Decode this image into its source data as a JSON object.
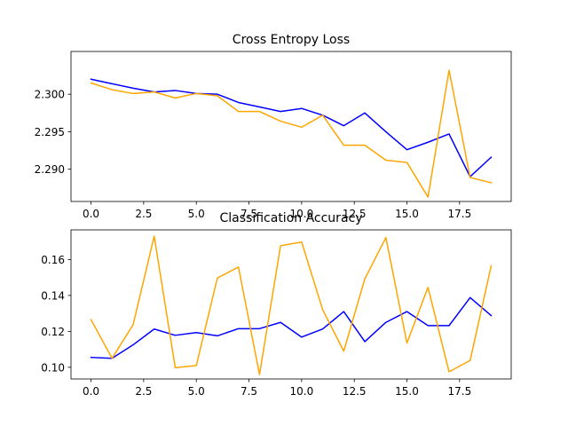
{
  "chart_data": [
    {
      "type": "line",
      "title": "Cross Entropy Loss",
      "x": [
        0,
        1,
        2,
        3,
        4,
        5,
        6,
        7,
        8,
        9,
        10,
        11,
        12,
        13,
        14,
        15,
        16,
        17,
        18,
        19
      ],
      "xlim": [
        -0.95,
        19.95
      ],
      "ylim": [
        2.2857,
        2.3057
      ],
      "xticks": [
        0,
        2.5,
        5,
        7.5,
        10,
        12.5,
        15,
        17.5
      ],
      "xtick_labels": [
        "0.0",
        "2.5",
        "5.0",
        "7.5",
        "10.0",
        "12.5",
        "15.0",
        "17.5"
      ],
      "yticks": [
        2.29,
        2.295,
        2.3
      ],
      "ytick_labels": [
        "2.290",
        "2.295",
        "2.300"
      ],
      "grid": false,
      "series": [
        {
          "color": "#0000ff",
          "values": [
            2.302,
            2.3014,
            2.3008,
            2.3003,
            2.3005,
            2.3001,
            2.3,
            2.2989,
            2.2983,
            2.2977,
            2.2981,
            2.2972,
            2.2958,
            2.2975,
            2.295,
            2.2926,
            2.2936,
            2.2947,
            2.289,
            2.2916
          ]
        },
        {
          "color": "#ffa500",
          "values": [
            2.3015,
            2.3006,
            2.3001,
            2.3003,
            2.2995,
            2.3001,
            2.2998,
            2.2977,
            2.2977,
            2.2964,
            2.2956,
            2.2972,
            2.2932,
            2.2932,
            2.2912,
            2.2909,
            2.2863,
            2.3032,
            2.2889,
            2.2882
          ]
        }
      ]
    },
    {
      "type": "line",
      "title": "Classification Accuracy",
      "x": [
        0,
        1,
        2,
        3,
        4,
        5,
        6,
        7,
        8,
        9,
        10,
        11,
        12,
        13,
        14,
        15,
        16,
        17,
        18,
        19
      ],
      "xlim": [
        -0.95,
        19.95
      ],
      "ylim": [
        0.0935,
        0.1765
      ],
      "xticks": [
        0,
        2.5,
        5,
        7.5,
        10,
        12.5,
        15,
        17.5
      ],
      "xtick_labels": [
        "0.0",
        "2.5",
        "5.0",
        "7.5",
        "10.0",
        "12.5",
        "15.0",
        "17.5"
      ],
      "yticks": [
        0.1,
        0.12,
        0.14,
        0.16
      ],
      "ytick_labels": [
        "0.10",
        "0.12",
        "0.14",
        "0.16"
      ],
      "grid": false,
      "series": [
        {
          "color": "#0000ff",
          "values": [
            0.1055,
            0.105,
            0.1125,
            0.1213,
            0.1178,
            0.1193,
            0.1175,
            0.1215,
            0.1215,
            0.125,
            0.1168,
            0.1213,
            0.131,
            0.1143,
            0.125,
            0.131,
            0.1232,
            0.1232,
            0.1388,
            0.1288
          ]
        },
        {
          "color": "#ffa500",
          "values": [
            0.1265,
            0.105,
            0.1237,
            0.173,
            0.0998,
            0.101,
            0.1497,
            0.1558,
            0.096,
            0.1677,
            0.1697,
            0.132,
            0.109,
            0.1492,
            0.1722,
            0.1135,
            0.1445,
            0.0975,
            0.1038,
            0.1565
          ]
        }
      ]
    }
  ]
}
